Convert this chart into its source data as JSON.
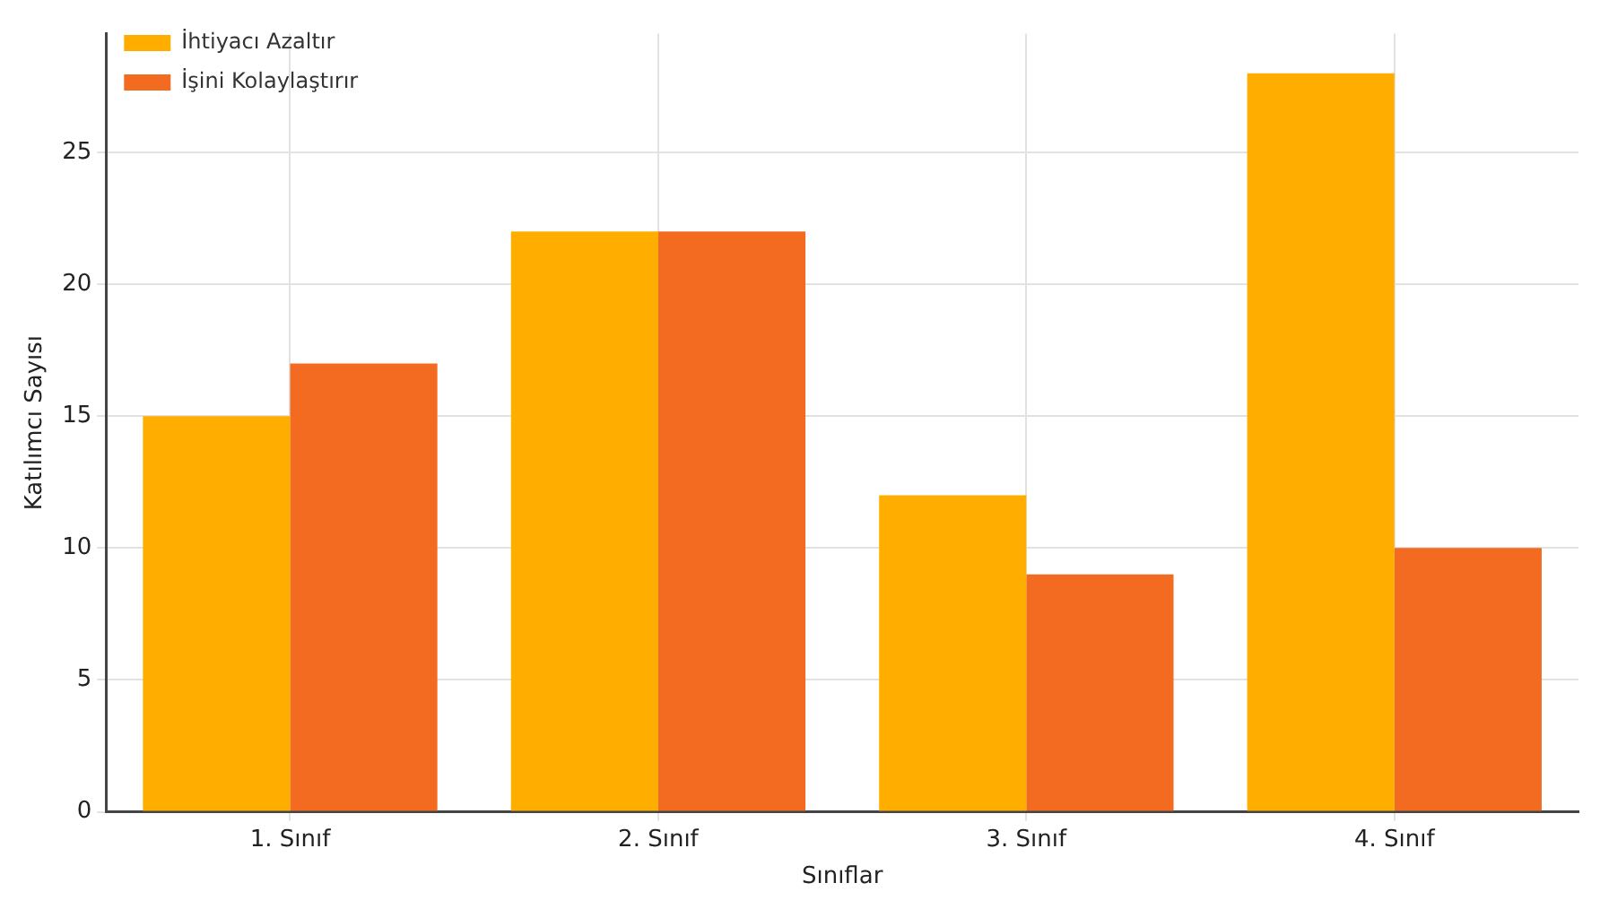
{
  "chart_data": {
    "type": "bar",
    "xlabel": "Sınıflar",
    "ylabel": "Katılımcı Sayısı",
    "categories": [
      "1. Sınıf",
      "2. Sınıf",
      "3. Sınıf",
      "4. Sınıf"
    ],
    "series": [
      {
        "name": "İhtiyacı Azaltır",
        "color": "#ffae00",
        "values": [
          15,
          22,
          12,
          28
        ]
      },
      {
        "name": "İşini Kolaylaştırır",
        "color": "#f26b21",
        "values": [
          17,
          22,
          9,
          10
        ]
      }
    ],
    "ylim": [
      0,
      29.5
    ],
    "yticks": [
      0,
      5,
      10,
      15,
      20,
      25
    ],
    "grid": true,
    "legend": "top left"
  }
}
